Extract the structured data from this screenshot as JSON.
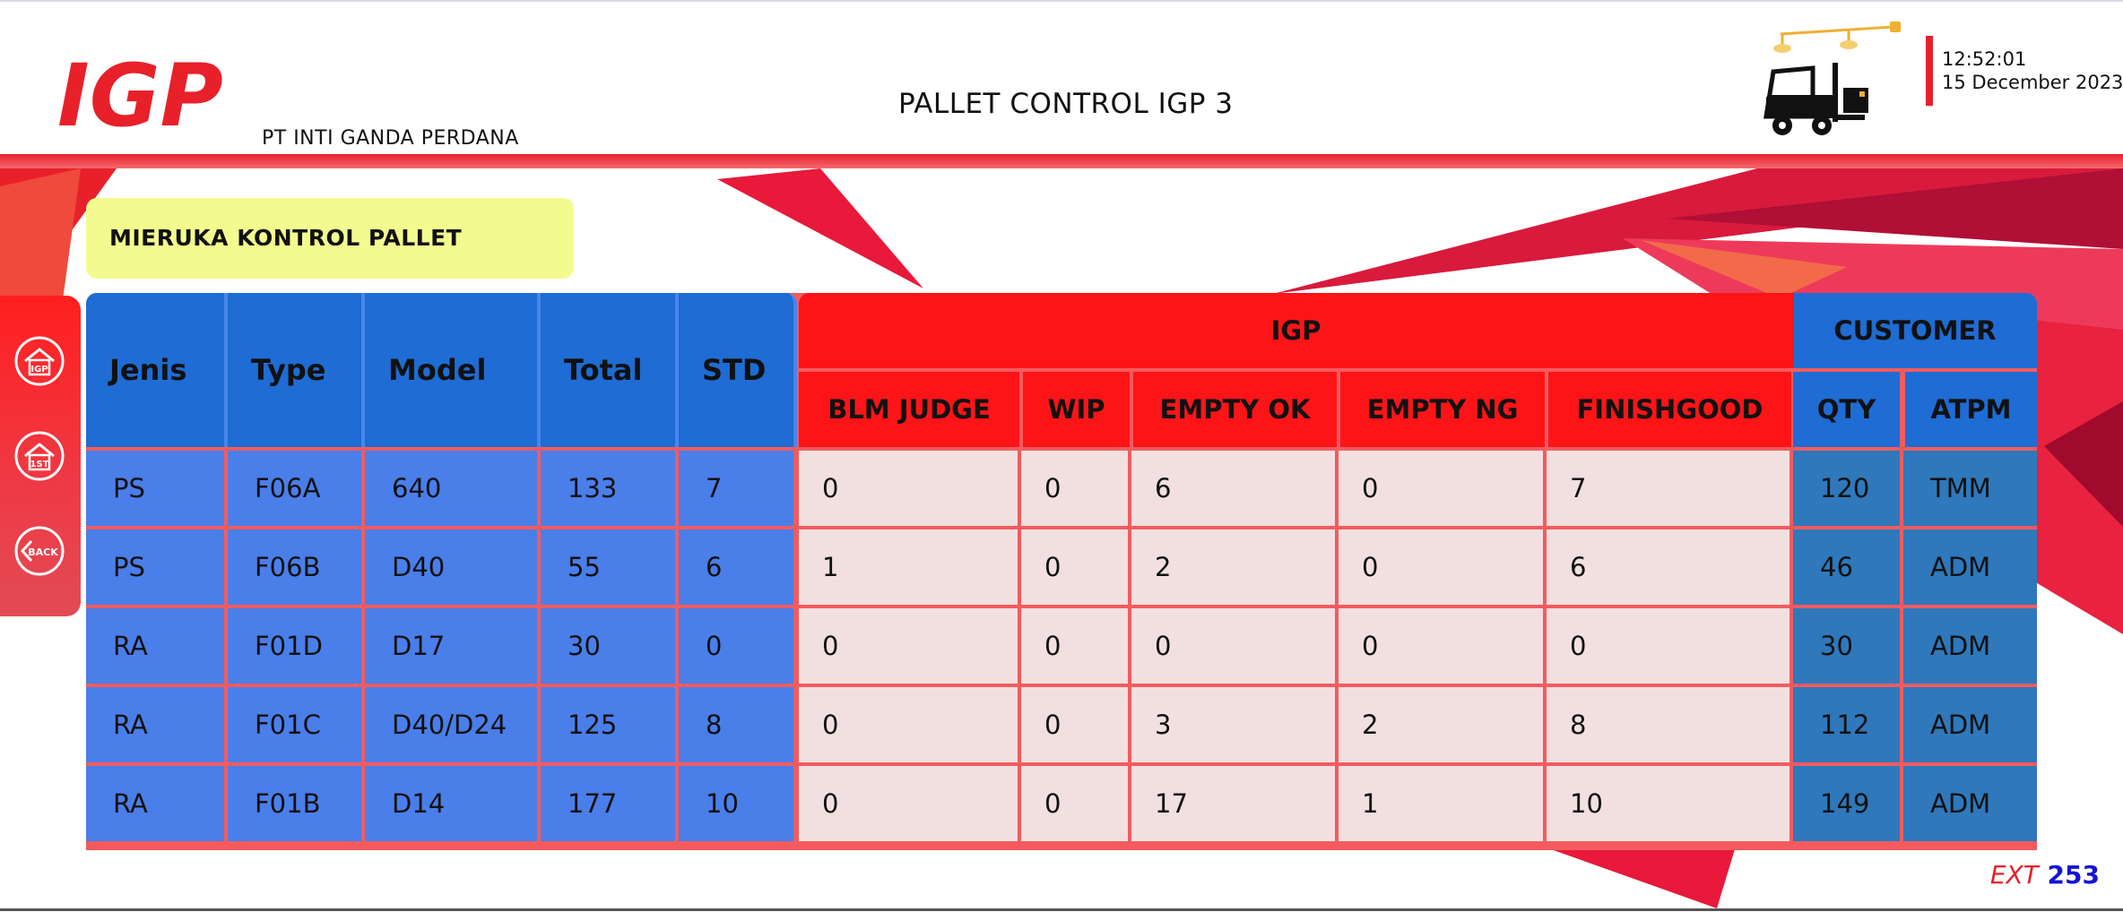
{
  "header": {
    "brand": "IGP",
    "company": "PT INTI GANDA PERDANA",
    "title": "PALLET CONTROL IGP 3",
    "time": "12:52:01",
    "date": "15 December 2023"
  },
  "section_label": "MIERUKA KONTROL PALLET",
  "nav": [
    {
      "icon": "igp-home-icon",
      "label": "IGP"
    },
    {
      "icon": "first-home-icon",
      "label": "1ST"
    },
    {
      "icon": "back-icon",
      "label": "BACK"
    }
  ],
  "table": {
    "left_headers": [
      "Jenis",
      "Type",
      "Model",
      "Total",
      "STD"
    ],
    "igp_group": "IGP",
    "igp_headers": [
      "BLM JUDGE",
      "WIP",
      "EMPTY OK",
      "EMPTY NG",
      "FINISHGOOD"
    ],
    "customer_group": "CUSTOMER",
    "customer_headers": [
      "QTY",
      "ATPM"
    ],
    "rows": [
      [
        "PS",
        "F06A",
        "640",
        "133",
        "7",
        "0",
        "0",
        "6",
        "0",
        "7",
        "120",
        "TMM"
      ],
      [
        "PS",
        "F06B",
        "D40",
        "55",
        "6",
        "1",
        "0",
        "2",
        "0",
        "6",
        "46",
        "ADM"
      ],
      [
        "RA",
        "F01D",
        "D17",
        "30",
        "0",
        "0",
        "0",
        "0",
        "0",
        "0",
        "30",
        "ADM"
      ],
      [
        "RA",
        "F01C",
        "D40/D24",
        "125",
        "8",
        "0",
        "0",
        "3",
        "2",
        "8",
        "112",
        "ADM"
      ],
      [
        "RA",
        "F01B",
        "D14",
        "177",
        "10",
        "0",
        "0",
        "17",
        "1",
        "10",
        "149",
        "ADM"
      ]
    ]
  },
  "footer": {
    "ext_label": "EXT",
    "ext_number": "253"
  },
  "colors": {
    "accent_red": "#fd1417",
    "header_blue": "#1e6cd4",
    "data_blue": "#4a7ee9",
    "customer_blue": "#2e78bb",
    "label_yellow": "#f4fb8e"
  }
}
